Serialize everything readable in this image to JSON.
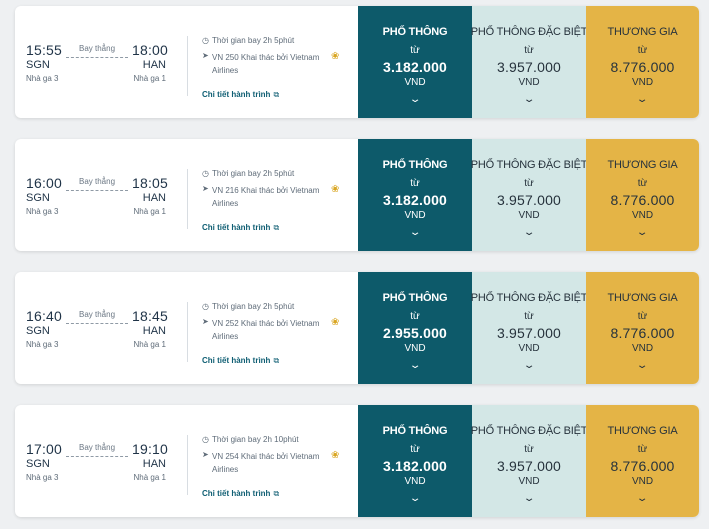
{
  "flights": [
    {
      "dep_time": "15:55",
      "dep_code": "SGN",
      "dep_terminal": "Nhà ga 3",
      "arr_time": "18:00",
      "arr_code": "HAN",
      "arr_terminal": "Nhà ga 1",
      "flight_type": "Bay thẳng",
      "duration": "Thời gian bay 2h 5phút",
      "flight_info": "VN 250 Khai thác bởi Vietnam Airlines",
      "itinerary_link": "Chi tiết hành trình",
      "fares": {
        "economy": {
          "name": "PHỔ THÔNG",
          "from": "từ",
          "price": "3.182.000",
          "currency": "VND"
        },
        "premium": {
          "name": "PHỔ THÔNG ĐẶC BIỆT",
          "from": "từ",
          "price": "3.957.000",
          "currency": "VND"
        },
        "business": {
          "name": "THƯƠNG GIA",
          "from": "từ",
          "price": "8.776.000",
          "currency": "VND"
        }
      }
    },
    {
      "dep_time": "16:00",
      "dep_code": "SGN",
      "dep_terminal": "Nhà ga 3",
      "arr_time": "18:05",
      "arr_code": "HAN",
      "arr_terminal": "Nhà ga 1",
      "flight_type": "Bay thẳng",
      "duration": "Thời gian bay 2h 5phút",
      "flight_info": "VN 216 Khai thác bởi Vietnam Airlines",
      "itinerary_link": "Chi tiết hành trình",
      "fares": {
        "economy": {
          "name": "PHỔ THÔNG",
          "from": "từ",
          "price": "3.182.000",
          "currency": "VND"
        },
        "premium": {
          "name": "PHỔ THÔNG ĐẶC BIỆT",
          "from": "từ",
          "price": "3.957.000",
          "currency": "VND"
        },
        "business": {
          "name": "THƯƠNG GIA",
          "from": "từ",
          "price": "8.776.000",
          "currency": "VND"
        }
      }
    },
    {
      "dep_time": "16:40",
      "dep_code": "SGN",
      "dep_terminal": "Nhà ga 3",
      "arr_time": "18:45",
      "arr_code": "HAN",
      "arr_terminal": "Nhà ga 1",
      "flight_type": "Bay thẳng",
      "duration": "Thời gian bay 2h 5phút",
      "flight_info": "VN 252 Khai thác bởi Vietnam Airlines",
      "itinerary_link": "Chi tiết hành trình",
      "fares": {
        "economy": {
          "name": "PHỔ THÔNG",
          "from": "từ",
          "price": "2.955.000",
          "currency": "VND"
        },
        "premium": {
          "name": "PHỔ THÔNG ĐẶC BIỆT",
          "from": "từ",
          "price": "3.957.000",
          "currency": "VND"
        },
        "business": {
          "name": "THƯƠNG GIA",
          "from": "từ",
          "price": "8.776.000",
          "currency": "VND"
        }
      }
    },
    {
      "dep_time": "17:00",
      "dep_code": "SGN",
      "dep_terminal": "Nhà ga 3",
      "arr_time": "19:10",
      "arr_code": "HAN",
      "arr_terminal": "Nhà ga 1",
      "flight_type": "Bay thẳng",
      "duration": "Thời gian bay 2h 10phút",
      "flight_info": "VN 254 Khai thác bởi Vietnam Airlines",
      "itinerary_link": "Chi tiết hành trình",
      "fares": {
        "economy": {
          "name": "PHỔ THÔNG",
          "from": "từ",
          "price": "3.182.000",
          "currency": "VND"
        },
        "premium": {
          "name": "PHỔ THÔNG ĐẶC BIỆT",
          "from": "từ",
          "price": "3.957.000",
          "currency": "VND"
        },
        "business": {
          "name": "THƯƠNG GIA",
          "from": "từ",
          "price": "8.776.000",
          "currency": "VND"
        }
      }
    }
  ],
  "icons": {
    "clock": "clock-icon",
    "plane": "plane-icon",
    "airline_logo": "lotus-logo-icon",
    "external_link": "external-link-icon",
    "expand": "chevron-down-icon"
  },
  "colors": {
    "economy_bg": "#0d5a6a",
    "premium_bg": "#d3e7e6",
    "business_bg": "#e4b446",
    "link": "#0f5e73"
  }
}
